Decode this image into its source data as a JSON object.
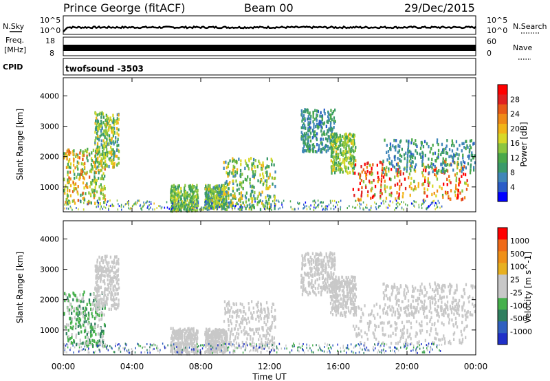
{
  "header": {
    "station": "Prince George (fitACF)",
    "beam": "Beam 00",
    "date": "29/Dec/2015"
  },
  "top_panels": {
    "nsky": {
      "label": "N.Sky",
      "tick_top": "10^5",
      "tick_bottom": "10^0"
    },
    "nsearch": {
      "label": "N.Search",
      "tick_top": "10^5",
      "tick_bottom": "10^0"
    },
    "freq": {
      "label_line1": "Freq.",
      "label_line2": "[MHz]",
      "tick_top": "18",
      "tick_bottom": "8"
    },
    "nave": {
      "label": "Nave",
      "tick_top": "60",
      "tick_bottom": "0"
    },
    "cpid": {
      "label": "CPID",
      "value": "twofsound -3503"
    }
  },
  "time_axis": {
    "xlabel": "Time UT",
    "ticks": [
      "00:00",
      "04:00",
      "08:00",
      "12:00",
      "16:00",
      "20:00",
      "00:00"
    ],
    "range_hours": [
      0,
      24
    ]
  },
  "power_panel": {
    "ylabel": "Slant Range [km]",
    "yticks": [
      "1000",
      "2000",
      "3000",
      "4000"
    ],
    "colorbar_label": "Power [dB]",
    "colorbar_ticks": [
      "4",
      "8",
      "12",
      "16",
      "20",
      "24",
      "28"
    ]
  },
  "velocity_panel": {
    "ylabel": "Slant Range [km]",
    "yticks": [
      "1000",
      "2000",
      "3000",
      "4000"
    ],
    "colorbar_label": "Velocity [m s^-1]",
    "colorbar_ticks": [
      "1000",
      "500",
      "100",
      "25",
      "-25",
      "-100",
      "-500",
      "-1000"
    ]
  },
  "colors": {
    "power_scale": [
      "#0000ff",
      "#2a5cc8",
      "#3f86b8",
      "#3a9a6a",
      "#4aa84a",
      "#8cc63f",
      "#d8d828",
      "#f2b418",
      "#f08a18",
      "#e85a18",
      "#e02020",
      "#ff0000"
    ],
    "velocity_scale": [
      "#2030c8",
      "#3060c0",
      "#2f7f5f",
      "#46b04c",
      "#c8c8c8",
      "#c8c8c8",
      "#e8b020",
      "#f09018",
      "#f06a18",
      "#ff0000"
    ]
  },
  "chart_data": [
    {
      "type": "heatmap",
      "title": "Power",
      "xlabel": "Time UT",
      "ylabel": "Slant Range [km]",
      "xlim": [
        0,
        24
      ],
      "ylim": [
        180,
        4600
      ],
      "colorbar": {
        "label": "Power [dB]",
        "range": [
          0,
          30
        ]
      },
      "regions": [
        {
          "t": [
            0.0,
            2.4
          ],
          "r": [
            500,
            2300
          ],
          "value_range": [
            8,
            24
          ]
        },
        {
          "t": [
            1.8,
            3.2
          ],
          "r": [
            1700,
            3500
          ],
          "value_range": [
            6,
            20
          ]
        },
        {
          "t": [
            6.2,
            7.8
          ],
          "r": [
            250,
            1100
          ],
          "value_range": [
            8,
            16
          ]
        },
        {
          "t": [
            8.2,
            9.5
          ],
          "r": [
            300,
            1100
          ],
          "value_range": [
            6,
            18
          ]
        },
        {
          "t": [
            9.3,
            12.3
          ],
          "r": [
            300,
            2000
          ],
          "value_range": [
            6,
            20
          ]
        },
        {
          "t": [
            13.8,
            15.8
          ],
          "r": [
            2200,
            3600
          ],
          "value_range": [
            4,
            12
          ]
        },
        {
          "t": [
            15.5,
            17.0
          ],
          "r": [
            1500,
            2800
          ],
          "value_range": [
            8,
            18
          ]
        },
        {
          "t": [
            16.8,
            23.5
          ],
          "r": [
            600,
            1900
          ],
          "value_range": [
            12,
            30
          ]
        },
        {
          "t": [
            18.5,
            24.0
          ],
          "r": [
            1500,
            2600
          ],
          "value_range": [
            4,
            12
          ]
        }
      ]
    },
    {
      "type": "heatmap",
      "title": "Velocity",
      "xlabel": "Time UT",
      "ylabel": "Slant Range [km]",
      "xlim": [
        0,
        24
      ],
      "ylim": [
        180,
        4600
      ],
      "colorbar": {
        "label": "Velocity [m s^-1]",
        "range": [
          -1000,
          1000
        ]
      },
      "regions": [
        {
          "t": [
            0.0,
            2.4
          ],
          "r": [
            500,
            2300
          ],
          "value_range": [
            -500,
            -25
          ]
        },
        {
          "t": [
            1.8,
            3.2
          ],
          "r": [
            1700,
            3500
          ],
          "value_range": [
            -25,
            25
          ]
        },
        {
          "t": [
            6.2,
            7.8
          ],
          "r": [
            250,
            1100
          ],
          "value_range": [
            -100,
            25
          ]
        },
        {
          "t": [
            8.2,
            9.5
          ],
          "r": [
            300,
            1100
          ],
          "value_range": [
            -100,
            100
          ]
        },
        {
          "t": [
            9.3,
            12.3
          ],
          "r": [
            300,
            2000
          ],
          "value_range": [
            -100,
            100
          ]
        },
        {
          "t": [
            13.8,
            15.8
          ],
          "r": [
            2200,
            3600
          ],
          "value_range": [
            -25,
            25
          ]
        },
        {
          "t": [
            15.5,
            17.0
          ],
          "r": [
            1500,
            2800
          ],
          "value_range": [
            -25,
            100
          ]
        },
        {
          "t": [
            16.8,
            23.5
          ],
          "r": [
            600,
            1900
          ],
          "value_range": [
            -25,
            100
          ]
        },
        {
          "t": [
            18.5,
            24.0
          ],
          "r": [
            1500,
            2600
          ],
          "value_range": [
            -25,
            25
          ]
        }
      ]
    }
  ]
}
